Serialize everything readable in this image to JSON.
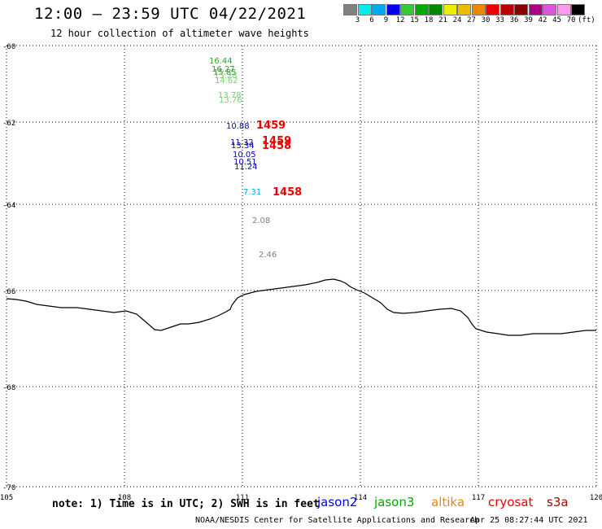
{
  "title": "12:00 – 23:59 UTC 04/22/2021",
  "subtitle": "12 hour collection of altimeter wave heights",
  "legend": {
    "unit": "(ft)",
    "colors": [
      "#808080",
      "#00eeee",
      "#00aaee",
      "#0000ee",
      "#33cc33",
      "#00aa00",
      "#008800",
      "#eeee00",
      "#eebb00",
      "#ee8800",
      "#ee0000",
      "#bb0000",
      "#880000",
      "#aa0088",
      "#dd55dd",
      "#ff99ee",
      "#000000"
    ],
    "labels": [
      "3",
      "6",
      "9",
      "12",
      "15",
      "18",
      "21",
      "24",
      "27",
      "30",
      "33",
      "36",
      "39",
      "42",
      "45",
      "70"
    ]
  },
  "axes": {
    "lat_ticks": [
      "-60",
      "-62",
      "-64",
      "-66",
      "-68",
      "-70"
    ],
    "lon_ticks": [
      "105",
      "108",
      "111",
      "114",
      "117",
      "120"
    ]
  },
  "observations": [
    {
      "text": "16.44",
      "color": "#22aa22"
    },
    {
      "text": "16.27",
      "color": "#22aa22"
    },
    {
      "text": "15.85",
      "color": "#22aa22"
    },
    {
      "text": "15.28",
      "color": "#66dd66"
    },
    {
      "text": "14.62",
      "color": "#66dd66"
    },
    {
      "text": "13.78",
      "color": "#66dd66"
    },
    {
      "text": "13.76",
      "color": "#66dd66"
    },
    {
      "text": "10.88",
      "color": "#0000cc"
    },
    {
      "text": "11.32",
      "color": "#0000cc"
    },
    {
      "text": "13.34",
      "color": "#0000cc"
    },
    {
      "text": "10.05",
      "color": "#0000cc"
    },
    {
      "text": "10.51",
      "color": "#0000cc"
    },
    {
      "text": "11.24",
      "color": "#0000cc"
    },
    {
      "text": "7.31",
      "color": "#00aaee"
    },
    {
      "text": "2.08",
      "color": "#808080"
    },
    {
      "text": "2.46",
      "color": "#808080"
    },
    {
      "text": "1459",
      "color": "#ee0000"
    },
    {
      "text": "1459",
      "color": "#ee0000"
    },
    {
      "text": "1458",
      "color": "#ee0000"
    },
    {
      "text": "1458",
      "color": "#ee0000"
    }
  ],
  "note": "note: 1) Time is in UTC; 2) SWH is in feet",
  "missions": [
    {
      "name": "jason2",
      "color": "#0000ee"
    },
    {
      "name": "jason3",
      "color": "#00aa00"
    },
    {
      "name": "altika",
      "color": "#ee8800"
    },
    {
      "name": "cryosat",
      "color": "#ee0000"
    },
    {
      "name": "s3a",
      "color": "#aa0000"
    }
  ],
  "credit": "NOAA/NESDIS Center for Satellite Applications and Research",
  "timestamp": "Apr 25 08:27:44 UTC 2021"
}
